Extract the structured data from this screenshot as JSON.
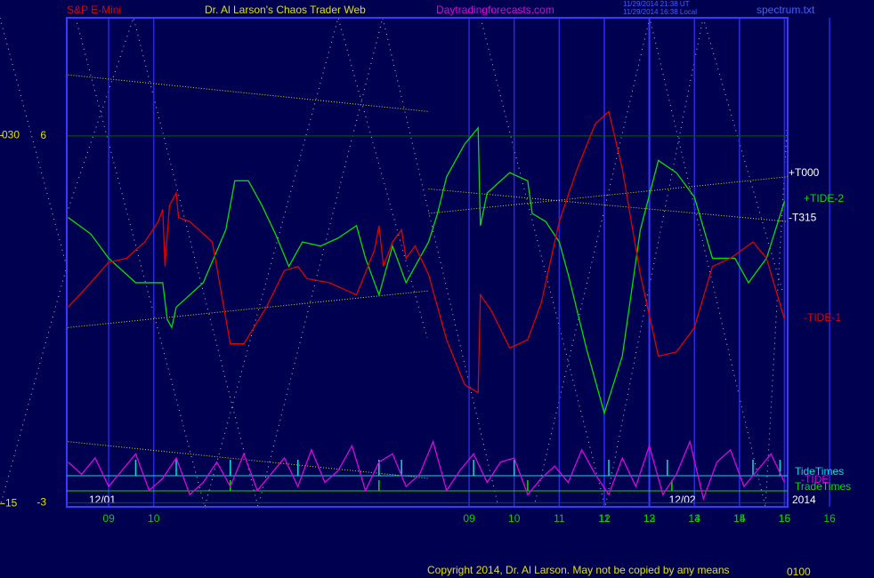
{
  "chart_data": {
    "type": "line",
    "header": {
      "left": "S&P E-Mini",
      "center": "Dr. Al Larson's Chaos Trader Web",
      "site": "Daytradingforecasts.com",
      "stamp_ut": "11/29/2014 21:38 UT",
      "stamp_local": "11/29/2014 16:38 Local",
      "file": "spectrum.txt"
    },
    "footer": "Copyright 2014, Dr. Al Larson. May not be copied by any means",
    "footer_right": "0100",
    "xlim": [
      -0.93,
      15.07
    ],
    "xticks": [
      {
        "value": 0,
        "label": "09"
      },
      {
        "value": 1,
        "label": "10"
      },
      11,
      12,
      13,
      14,
      15,
      16,
      {
        "value": 8,
        "label": "09"
      },
      {
        "value": 9,
        "label": "10"
      },
      {
        "value": 10,
        "label": "11"
      },
      {
        "value": 11,
        "label": "12"
      },
      {
        "value": 12,
        "label": "13"
      },
      {
        "value": 13,
        "label": "14"
      },
      {
        "value": 14,
        "label": "15"
      },
      {
        "value": 15,
        "label": "16"
      }
    ],
    "day_labels": [
      "12/01",
      "12/02"
    ],
    "year": "2014",
    "ylim": [
      -3.1,
      8.9
    ],
    "yticks": [
      -3,
      6
    ],
    "y2lim": [
      -15.4,
      44.4
    ],
    "y2ticks": [
      {
        "value": 30,
        "label": "030"
      },
      -15
    ],
    "grid": true,
    "series": [
      {
        "name": "+TIDE-2",
        "color": "#00e000",
        "x": [
          -0.9,
          -0.4,
          0,
          0.6,
          1.2,
          1.3,
          1.4,
          1.5,
          2.1,
          2.6,
          2.8,
          3.1,
          3.4,
          3.7,
          4.0,
          4.3,
          4.7,
          5.1,
          5.5,
          5.7,
          6.0,
          6.3,
          6.6,
          6.9,
          7.1,
          7.3,
          7.5,
          7.9,
          8.2,
          8.25,
          8.4,
          8.9,
          9.3,
          9.4,
          9.7,
          10.0,
          10.2,
          10.6,
          11.0,
          11.4,
          11.8,
          12.2,
          12.6,
          13.0,
          13.4,
          13.9,
          14.2,
          14.6,
          15.0
        ],
        "values": [
          4.0,
          3.6,
          3.0,
          2.4,
          2.4,
          1.5,
          1.3,
          1.8,
          2.4,
          3.7,
          4.9,
          4.9,
          4.3,
          3.6,
          2.8,
          3.4,
          3.3,
          3.5,
          3.8,
          3.0,
          2.1,
          3.3,
          2.4,
          3.0,
          3.4,
          4.1,
          5.0,
          5.8,
          6.2,
          3.8,
          4.6,
          5.1,
          4.9,
          4.1,
          3.9,
          3.4,
          2.6,
          0.8,
          -0.8,
          0.6,
          3.7,
          5.4,
          5.1,
          4.5,
          3.0,
          3.0,
          2.4,
          3.0,
          4.4
        ]
      },
      {
        "name": "-TIDE-1",
        "color": "#e00000",
        "x": [
          -0.9,
          -0.4,
          0,
          0.4,
          0.8,
          1.1,
          1.2,
          1.25,
          1.35,
          1.5,
          1.55,
          1.8,
          2.3,
          2.7,
          3.0,
          3.5,
          3.9,
          4.2,
          4.4,
          4.9,
          5.5,
          5.9,
          6.0,
          6.1,
          6.3,
          6.5,
          6.6,
          6.8,
          7.1,
          7.5,
          7.9,
          8.2,
          8.25,
          8.5,
          8.9,
          9.3,
          9.6,
          10.0,
          10.4,
          10.8,
          11.1,
          11.4,
          11.8,
          12.2,
          12.6,
          13.0,
          13.4,
          13.8,
          14.3,
          14.6,
          15.0
        ],
        "values": [
          1.8,
          2.4,
          2.9,
          3.0,
          3.4,
          3.9,
          4.2,
          2.8,
          4.3,
          4.6,
          4.0,
          3.9,
          3.4,
          0.9,
          0.9,
          1.8,
          2.7,
          2.8,
          2.5,
          2.4,
          2.1,
          3.2,
          3.8,
          2.8,
          3.4,
          3.7,
          3.0,
          3.3,
          2.6,
          1.0,
          -0.1,
          -0.3,
          2.1,
          1.7,
          0.8,
          1.0,
          1.9,
          3.9,
          5.2,
          6.3,
          6.6,
          5.2,
          2.6,
          0.6,
          0.7,
          1.3,
          2.8,
          3.0,
          3.4,
          3.0,
          1.5
        ]
      },
      {
        "name": "-TIDE",
        "color": "#e000e0",
        "x": [
          -0.9,
          -0.6,
          -0.3,
          0,
          0.3,
          0.6,
          0.9,
          1.2,
          1.5,
          1.8,
          2.1,
          2.4,
          2.7,
          3.0,
          3.3,
          3.6,
          3.9,
          4.2,
          4.5,
          4.8,
          5.1,
          5.4,
          5.7,
          6.0,
          6.3,
          6.6,
          6.9,
          7.2,
          7.5,
          7.8,
          8.1,
          8.4,
          8.7,
          9.0,
          9.3,
          9.6,
          9.9,
          10.2,
          10.5,
          10.8,
          11.1,
          11.4,
          11.7,
          12.0,
          12.3,
          12.6,
          12.9,
          13.2,
          13.5,
          13.8,
          14.1,
          14.4,
          14.7,
          15.0
        ],
        "values": [
          -2.0,
          -2.3,
          -1.9,
          -2.6,
          -2.2,
          -1.8,
          -2.7,
          -2.4,
          -1.9,
          -2.8,
          -2.5,
          -2.0,
          -2.6,
          -1.8,
          -2.7,
          -2.3,
          -1.9,
          -2.6,
          -1.7,
          -2.5,
          -2.2,
          -1.6,
          -2.7,
          -2.0,
          -1.8,
          -2.6,
          -2.3,
          -1.5,
          -2.7,
          -2.2,
          -1.8,
          -2.5,
          -2.0,
          -1.9,
          -2.8,
          -2.4,
          -2.1,
          -2.5,
          -1.7,
          -2.3,
          -2.8,
          -1.9,
          -2.6,
          -1.6,
          -2.8,
          -2.3,
          -1.5,
          -2.9,
          -2.0,
          -1.7,
          -2.6,
          -2.2,
          -1.8,
          -2.5
        ]
      }
    ],
    "trend_lines": [
      {
        "color": "#e0e000",
        "x": [
          -0.9,
          7.1
        ],
        "values": [
          7.5,
          6.6
        ]
      },
      {
        "color": "#e0e000",
        "x": [
          -0.9,
          7.1
        ],
        "values": [
          1.3,
          2.2
        ]
      },
      {
        "color": "#e0e000",
        "x": [
          -0.9,
          7.1
        ],
        "values": [
          -1.5,
          -2.4
        ]
      },
      {
        "name": "+T000",
        "color": "#e0e000",
        "x": [
          7.1,
          15.07
        ],
        "values": [
          4.1,
          5.0
        ]
      },
      {
        "name": "-T315",
        "color": "#e0e000",
        "x": [
          7.1,
          15.07
        ],
        "values": [
          4.7,
          3.9
        ]
      }
    ],
    "tide_times": {
      "name": "TideTimes",
      "color": "#00e0e0",
      "x": [
        0.6,
        1.5,
        2.7,
        4.2,
        6.0,
        6.5,
        8.1,
        9.0,
        11.1,
        12.4,
        14.3,
        14.9
      ]
    },
    "trade_times": {
      "name": "TradeTimes",
      "color": "#00e000",
      "x": [
        2.7,
        6.0,
        9.3,
        12.5
      ]
    }
  }
}
